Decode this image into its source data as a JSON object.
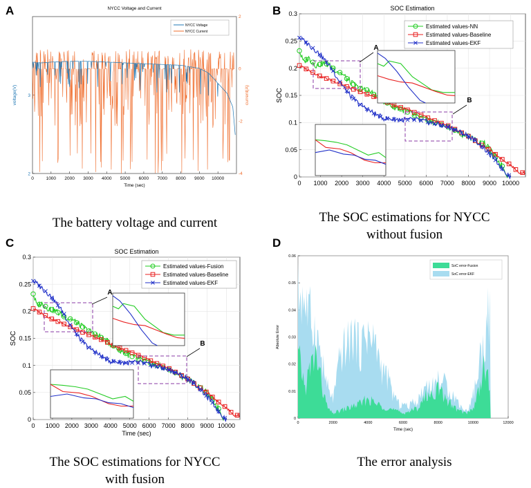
{
  "panels": {
    "a": {
      "letter": "A",
      "caption": "The battery voltage and current"
    },
    "b": {
      "letter": "B",
      "caption_line1": "The SOC estimations for NYCC",
      "caption_line2": "without fusion"
    },
    "c": {
      "letter": "C",
      "caption_line1": "The SOC estimations for NYCC",
      "caption_line2": "with fusion"
    },
    "d": {
      "letter": "D",
      "caption": "The error analysis"
    }
  },
  "colors": {
    "voltage": "#1f77b4",
    "current": "#ef6c2b",
    "nn": "#22cc22",
    "fusion": "#22cc22",
    "baseline": "#e82020",
    "ekf": "#2030c8",
    "callout": "#8a3aa6",
    "err_fusion": "#3ddc97",
    "err_ekf": "#a8dcf0"
  },
  "chart_data": [
    {
      "id": "A",
      "type": "line",
      "title": "NYCC Voltage and Current",
      "xlabel": "Time (sec)",
      "ylabel_left": "voltage(V)",
      "ylabel_right": "current(A)",
      "xlim": [
        0,
        11000
      ],
      "ylim_left": [
        2,
        4
      ],
      "ylim_right": [
        -4,
        2
      ],
      "xticks": [
        0,
        1000,
        2000,
        3000,
        4000,
        5000,
        6000,
        7000,
        8000,
        9000,
        10000
      ],
      "yticks_left": [
        2,
        3
      ],
      "yticks_right": [
        -4,
        -2,
        0,
        2
      ],
      "legend": [
        "NYCC Voltage",
        "NYCC Current"
      ],
      "series": [
        {
          "name": "NYCC Voltage",
          "axis": "left",
          "x": [
            0,
            500,
            1000,
            2000,
            3000,
            4000,
            5000,
            6000,
            7000,
            8000,
            9000,
            9500,
            10000,
            10500,
            10800,
            10950
          ],
          "y": [
            3.42,
            3.41,
            3.42,
            3.43,
            3.43,
            3.42,
            3.41,
            3.4,
            3.39,
            3.38,
            3.34,
            3.28,
            3.15,
            3.02,
            2.85,
            2.45
          ]
        },
        {
          "name": "NYCC Current",
          "axis": "right",
          "x": [
            0,
            1000,
            2000,
            3000,
            4000,
            5000,
            6000,
            7000,
            8000,
            9000,
            10000,
            10900
          ],
          "y": [
            0,
            0.2,
            0,
            0,
            0,
            0,
            0,
            0,
            0,
            0,
            0,
            0
          ]
        }
      ]
    },
    {
      "id": "B",
      "type": "line",
      "title": "SOC Estimation",
      "xlabel": "",
      "ylabel": "SOC",
      "xlim": [
        0,
        10700
      ],
      "ylim": [
        0,
        0.3
      ],
      "xticks": [
        0,
        1000,
        2000,
        3000,
        4000,
        5000,
        6000,
        7000,
        8000,
        9000,
        10000
      ],
      "yticks": [
        0,
        0.05,
        0.1,
        0.15,
        0.2,
        0.25,
        0.3
      ],
      "legend": [
        "Estimated values-NN",
        "Estimated values-Baseline",
        "Estimated values-EKF"
      ],
      "annotations": [
        "A",
        "B"
      ],
      "series": [
        {
          "name": "Estimated values-NN",
          "x": [
            0,
            200,
            400,
            800,
            1200,
            1600,
            2000,
            2400,
            2800,
            3200,
            3600,
            4000,
            4400,
            4800,
            5200,
            5600,
            6000,
            6400,
            6800,
            7200,
            7600,
            8000,
            8400,
            8800,
            9200,
            9600,
            9900
          ],
          "y": [
            0.232,
            0.21,
            0.22,
            0.205,
            0.21,
            0.2,
            0.19,
            0.175,
            0.163,
            0.16,
            0.15,
            0.14,
            0.13,
            0.125,
            0.118,
            0.11,
            0.105,
            0.1,
            0.095,
            0.09,
            0.08,
            0.075,
            0.065,
            0.06,
            0.04,
            0.02,
            0.0
          ]
        },
        {
          "name": "Estimated values-Baseline",
          "x": [
            0,
            500,
            1000,
            1500,
            2000,
            2500,
            3000,
            3500,
            4000,
            4500,
            5000,
            5500,
            6000,
            6500,
            7000,
            7500,
            8000,
            8500,
            9000,
            9500,
            10000,
            10400,
            10700
          ],
          "y": [
            0.205,
            0.195,
            0.185,
            0.178,
            0.17,
            0.162,
            0.155,
            0.148,
            0.14,
            0.132,
            0.125,
            0.118,
            0.11,
            0.102,
            0.095,
            0.085,
            0.075,
            0.062,
            0.05,
            0.035,
            0.022,
            0.008,
            0.008
          ]
        },
        {
          "name": "Estimated values-EKF",
          "x": [
            0,
            400,
            800,
            1200,
            1600,
            2000,
            2400,
            2800,
            3200,
            3600,
            4000,
            4800,
            5600,
            6400,
            7200,
            8000,
            8400,
            8800,
            9200,
            9600,
            10000
          ],
          "y": [
            0.256,
            0.245,
            0.232,
            0.215,
            0.195,
            0.17,
            0.15,
            0.135,
            0.125,
            0.115,
            0.108,
            0.105,
            0.105,
            0.098,
            0.09,
            0.075,
            0.065,
            0.05,
            0.035,
            0.015,
            0.0
          ]
        }
      ]
    },
    {
      "id": "C",
      "type": "line",
      "title": "SOC Estimation",
      "xlabel": "Time (sec)",
      "ylabel": "SOC",
      "xlim": [
        0,
        10700
      ],
      "ylim": [
        0,
        0.3
      ],
      "xticks": [
        0,
        1000,
        2000,
        3000,
        4000,
        5000,
        6000,
        7000,
        8000,
        9000,
        10000
      ],
      "yticks": [
        0,
        0.05,
        0.1,
        0.15,
        0.2,
        0.25,
        0.3
      ],
      "legend": [
        "Estimated values-Fusion",
        "Estimated values-Baseline",
        "Estimated values-EKF"
      ],
      "annotations": [
        "A",
        "B"
      ],
      "series": [
        {
          "name": "Estimated values-Fusion",
          "x": [
            0,
            200,
            400,
            800,
            1200,
            1600,
            2000,
            2400,
            2800,
            3200,
            3600,
            4000,
            4400,
            4800,
            5200,
            5600,
            6000,
            6400,
            6800,
            7200,
            7600,
            8000,
            8400,
            8800,
            9200,
            9600,
            9900
          ],
          "y": [
            0.232,
            0.21,
            0.215,
            0.205,
            0.2,
            0.19,
            0.185,
            0.175,
            0.165,
            0.158,
            0.15,
            0.14,
            0.13,
            0.122,
            0.115,
            0.11,
            0.105,
            0.1,
            0.095,
            0.09,
            0.082,
            0.075,
            0.065,
            0.055,
            0.04,
            0.02,
            0.0
          ]
        },
        {
          "name": "Estimated values-Baseline",
          "x": [
            0,
            500,
            1000,
            1500,
            2000,
            2500,
            3000,
            3500,
            4000,
            4500,
            5000,
            5500,
            6000,
            6500,
            7000,
            7500,
            8000,
            8500,
            9000,
            9500,
            10000,
            10400,
            10700
          ],
          "y": [
            0.205,
            0.195,
            0.185,
            0.178,
            0.17,
            0.162,
            0.155,
            0.148,
            0.14,
            0.132,
            0.125,
            0.118,
            0.11,
            0.102,
            0.095,
            0.085,
            0.075,
            0.062,
            0.05,
            0.035,
            0.022,
            0.008,
            0.008
          ]
        },
        {
          "name": "Estimated values-EKF",
          "x": [
            0,
            400,
            800,
            1200,
            1600,
            2000,
            2400,
            2800,
            3200,
            3600,
            4000,
            4800,
            5600,
            6400,
            7200,
            8000,
            8400,
            8800,
            9200,
            9600,
            10000
          ],
          "y": [
            0.256,
            0.245,
            0.232,
            0.215,
            0.195,
            0.17,
            0.15,
            0.135,
            0.125,
            0.115,
            0.108,
            0.105,
            0.105,
            0.098,
            0.09,
            0.075,
            0.065,
            0.05,
            0.035,
            0.015,
            0.0
          ]
        }
      ]
    },
    {
      "id": "D",
      "type": "area",
      "title": "",
      "xlabel": "Time (sec)",
      "ylabel": "Absolute Error",
      "xlim": [
        0,
        12000
      ],
      "ylim": [
        0,
        0.06
      ],
      "xticks": [
        0,
        2000,
        4000,
        6000,
        8000,
        10000,
        12000
      ],
      "yticks": [
        0,
        0.01,
        0.02,
        0.03,
        0.04,
        0.05,
        0.06
      ],
      "legend": [
        "SoC error-Fusion",
        "SoC error-EKF"
      ],
      "series": [
        {
          "name": "SoC error-EKF",
          "x": [
            0,
            200,
            400,
            600,
            800,
            1000,
            1200,
            1400,
            1600,
            1800,
            2000,
            2200,
            2400,
            2600,
            2800,
            3000,
            3200,
            3400,
            3600,
            3800,
            4000,
            4200,
            4400,
            4600,
            4800,
            5000,
            5200,
            5400,
            5600,
            5800,
            6000,
            6200,
            6400,
            6600,
            6800,
            7000,
            7200,
            7400,
            7600,
            7800,
            8000,
            8200,
            8400,
            8600,
            8800,
            9000,
            9200,
            9400,
            9600,
            9800,
            10000,
            10200,
            10400,
            10600,
            10800,
            10950,
            11000
          ],
          "y": [
            0.05,
            0.052,
            0.048,
            0.042,
            0.04,
            0.035,
            0.03,
            0.022,
            0.015,
            0.01,
            0.008,
            0.015,
            0.025,
            0.028,
            0.03,
            0.032,
            0.035,
            0.03,
            0.028,
            0.034,
            0.036,
            0.03,
            0.032,
            0.025,
            0.02,
            0.018,
            0.015,
            0.01,
            0.008,
            0.005,
            0.006,
            0.005,
            0.005,
            0.008,
            0.006,
            0.01,
            0.012,
            0.015,
            0.012,
            0.014,
            0.016,
            0.015,
            0.014,
            0.012,
            0.01,
            0.008,
            0.006,
            0.004,
            0.003,
            0.005,
            0.01,
            0.015,
            0.025,
            0.03,
            0.04,
            0.045,
            0.0
          ]
        },
        {
          "name": "SoC error-Fusion",
          "x": [
            0,
            200,
            400,
            600,
            800,
            1000,
            1200,
            1400,
            1600,
            1800,
            2000,
            2400,
            2800,
            3200,
            3600,
            4000,
            4400,
            4800,
            5200,
            5600,
            6000,
            6400,
            6800,
            7000,
            7200,
            7400,
            7600,
            7800,
            8000,
            8200,
            8400,
            8600,
            8800,
            9000,
            9200,
            9600,
            10000,
            10200,
            10400,
            10600,
            10800,
            10950,
            11000
          ],
          "y": [
            0.025,
            0.02,
            0.012,
            0.018,
            0.022,
            0.026,
            0.02,
            0.012,
            0.006,
            0.003,
            0.002,
            0.003,
            0.004,
            0.005,
            0.006,
            0.008,
            0.006,
            0.005,
            0.004,
            0.003,
            0.002,
            0.003,
            0.004,
            0.006,
            0.008,
            0.01,
            0.009,
            0.011,
            0.012,
            0.01,
            0.008,
            0.007,
            0.005,
            0.004,
            0.003,
            0.002,
            0.004,
            0.008,
            0.015,
            0.02,
            0.018,
            0.012,
            0.0
          ]
        }
      ]
    }
  ]
}
